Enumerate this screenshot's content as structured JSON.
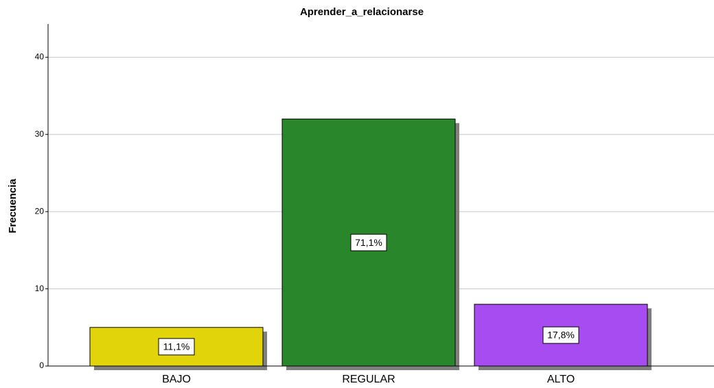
{
  "chart_data": {
    "type": "bar",
    "title": "Aprender_a_relacionarse",
    "y_label": "Frecuencia",
    "categories": [
      "BAJO",
      "REGULAR",
      "ALTO"
    ],
    "values": [
      5,
      32,
      8
    ],
    "percent_labels": [
      "11,1%",
      "71,1%",
      "17,8%"
    ],
    "colors": [
      "#e2d40a",
      "#2a862a",
      "#a64cf0"
    ],
    "ylim": [
      0,
      44.3
    ],
    "yticks": [
      0,
      10,
      20,
      30,
      40
    ],
    "grid": true
  }
}
